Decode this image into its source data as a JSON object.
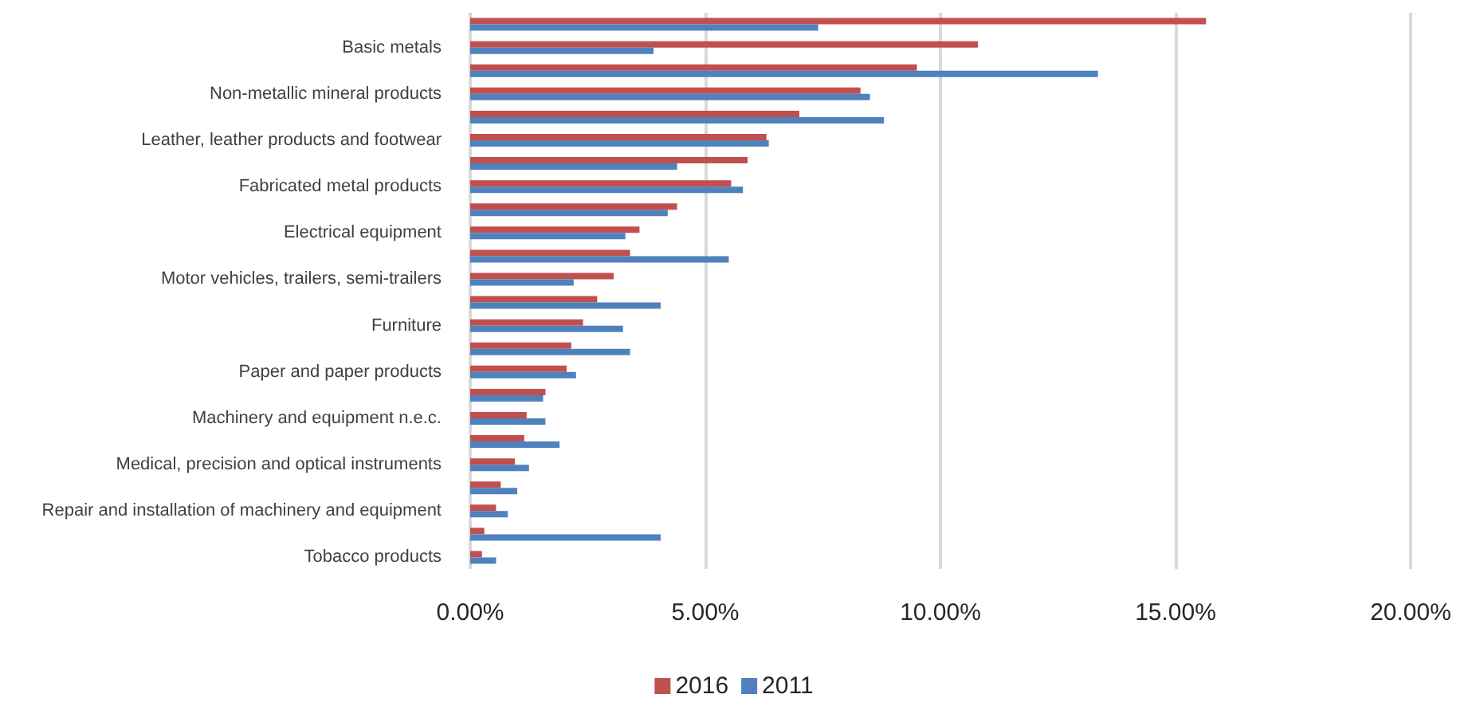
{
  "chart_data": {
    "type": "bar",
    "orientation": "horizontal",
    "categories": [
      null,
      "Basic metals",
      null,
      "Non-metallic mineral products",
      null,
      "Leather, leather products and footwear",
      null,
      "Fabricated metal products",
      null,
      "Electrical equipment",
      null,
      "Motor vehicles, trailers, semi-trailers",
      null,
      "Furniture",
      null,
      "Paper and paper products",
      null,
      "Machinery and equipment n.e.c.",
      null,
      "Medical, precision and optical instruments",
      null,
      "Repair and installation of machinery and equipment",
      null,
      "Tobacco products"
    ],
    "series": [
      {
        "name": "2016",
        "color": "#c0504d",
        "values": [
          15.65,
          10.8,
          9.5,
          8.3,
          7.0,
          6.3,
          5.9,
          5.55,
          4.4,
          3.6,
          3.4,
          3.05,
          2.7,
          2.4,
          2.15,
          2.05,
          1.6,
          1.2,
          1.15,
          0.95,
          0.65,
          0.55,
          0.3,
          0.25
        ]
      },
      {
        "name": "2011",
        "color": "#4f81bd",
        "values": [
          7.4,
          3.9,
          13.35,
          8.5,
          8.8,
          6.35,
          4.4,
          5.8,
          4.2,
          3.3,
          5.5,
          2.2,
          4.05,
          3.25,
          3.4,
          2.25,
          1.55,
          1.6,
          1.9,
          1.25,
          1.0,
          0.8,
          4.05,
          0.55
        ]
      }
    ],
    "xlim": [
      0,
      20
    ],
    "xticks": [
      {
        "value": 0,
        "label": "0.00%"
      },
      {
        "value": 5,
        "label": "5.00%"
      },
      {
        "value": 10,
        "label": "10.00%"
      },
      {
        "value": 15,
        "label": "15.00%"
      },
      {
        "value": 20,
        "label": "20.00%"
      }
    ],
    "grid": "x",
    "legend": "bottom"
  }
}
